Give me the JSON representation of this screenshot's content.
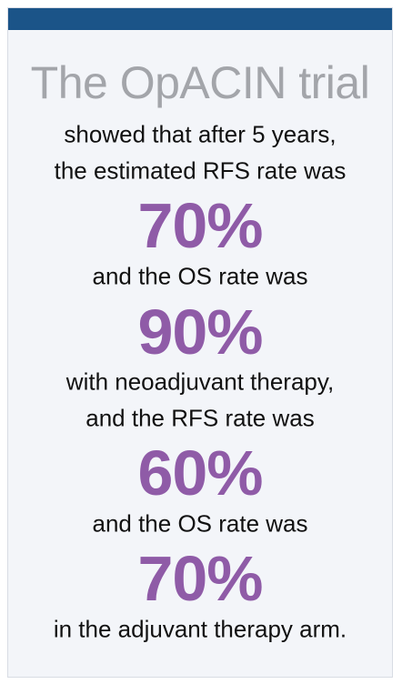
{
  "title": "The OpACIN trial",
  "lines": [
    "showed that after 5 years,",
    "the estimated RFS rate was",
    "70%",
    "and the OS rate was",
    "90%",
    "with neoadjuvant therapy,",
    "and the RFS rate was",
    "60%",
    "and the OS rate was",
    "70%",
    "in the adjuvant therapy arm."
  ]
}
